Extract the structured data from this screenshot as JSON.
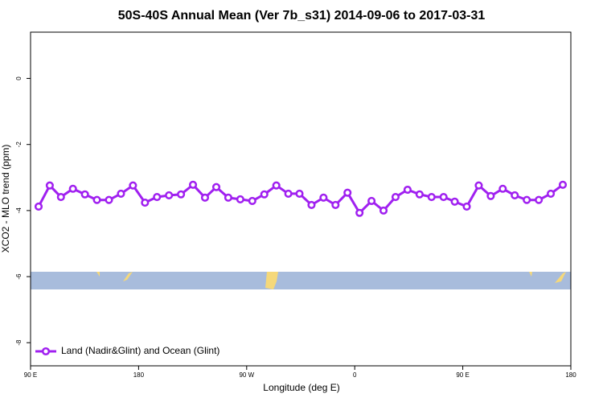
{
  "chart_data": {
    "type": "line",
    "title": "50S-40S Annual Mean (Ver 7b_s31)   2014-09-06 to 2017-03-31",
    "x_label": "Longitude (deg E)",
    "y_label": "XCO2 - MLO trend (ppm)",
    "x": [
      96.7,
      106,
      115.3,
      125.3,
      135.3,
      145.3,
      155.3,
      165.3,
      175.3,
      185.3,
      195.3,
      205.3,
      215.3,
      225.3,
      235.3,
      244.7,
      254.7,
      264.7,
      274.7,
      284.7,
      294.7,
      304.7,
      314,
      324,
      334,
      344,
      354,
      364,
      374,
      384,
      394,
      404,
      414,
      424,
      434,
      443.3,
      453.3,
      463.3,
      473.3,
      483.3,
      493.3,
      503.3,
      513.3,
      523.3,
      533.3
    ],
    "series": [
      {
        "name": "Land (Nadir&Glint) and Ocean (Glint)",
        "color": "#a020f0",
        "values": [
          -3.88,
          -3.24,
          -3.59,
          -3.34,
          -3.51,
          -3.68,
          -3.68,
          -3.49,
          -3.24,
          -3.76,
          -3.59,
          -3.54,
          -3.51,
          -3.22,
          -3.61,
          -3.29,
          -3.61,
          -3.66,
          -3.71,
          -3.51,
          -3.24,
          -3.49,
          -3.49,
          -3.83,
          -3.61,
          -3.83,
          -3.46,
          -4.07,
          -3.71,
          -4.0,
          -3.59,
          -3.37,
          -3.51,
          -3.59,
          -3.59,
          -3.73,
          -3.88,
          -3.24,
          -3.56,
          -3.34,
          -3.54,
          -3.68,
          -3.68,
          -3.49,
          -3.22
        ]
      }
    ],
    "xlim": [
      90,
      540
    ],
    "xticks": [
      {
        "value": 90,
        "label": "90 E"
      },
      {
        "value": 180,
        "label": "180"
      },
      {
        "value": 270,
        "label": "90 W"
      },
      {
        "value": 360,
        "label": "0"
      },
      {
        "value": 450,
        "label": "90 E"
      },
      {
        "value": 540,
        "label": "180"
      }
    ],
    "ylim": [
      -8.7,
      1.4
    ],
    "yticks": [
      0,
      -2,
      -4,
      -6,
      -8
    ],
    "legend": "bottom-left"
  }
}
